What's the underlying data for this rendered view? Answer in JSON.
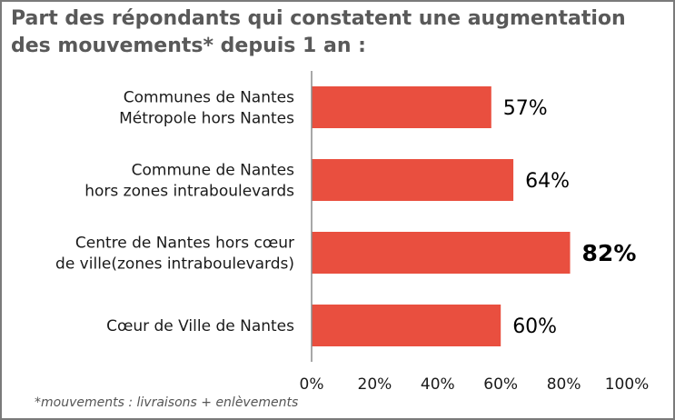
{
  "chart_data": {
    "type": "bar",
    "orientation": "horizontal",
    "title_lines": [
      "Part des répondants qui constatent une augmentation",
      "des mouvements* depuis 1 an :"
    ],
    "categories": [
      [
        "Communes de Nantes",
        "Métropole hors Nantes"
      ],
      [
        "Commune de Nantes",
        "hors zones intraboulevards"
      ],
      [
        "Centre de Nantes hors cœur",
        "de ville(zones intraboulevards)"
      ],
      [
        "Cœur de Ville de Nantes"
      ]
    ],
    "values": [
      57,
      64,
      82,
      60
    ],
    "value_labels": [
      "57%",
      "64%",
      "82%",
      "60%"
    ],
    "highlight_index": 2,
    "xlim": [
      0,
      100
    ],
    "xticks": [
      0,
      20,
      40,
      60,
      80,
      100
    ],
    "xtick_labels": [
      "0%",
      "20%",
      "40%",
      "60%",
      "80%",
      "100%"
    ],
    "bar_color": "#e94f3f",
    "footnote": "*mouvements : livraisons + enlèvements"
  }
}
